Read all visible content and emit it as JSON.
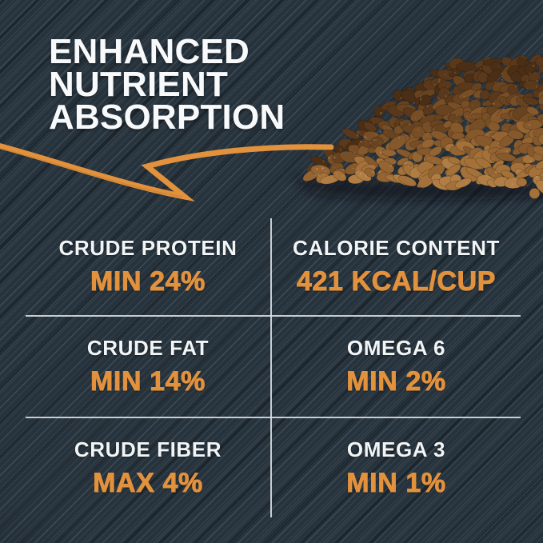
{
  "page": {
    "type": "product-nutrition-infographic"
  },
  "colors": {
    "background": "#26323c",
    "headline_text": "#f7f9fa",
    "label_text": "#f2f5f6",
    "accent_orange": "#e2913c",
    "divider": "#dde3e7"
  },
  "headline": {
    "lines": [
      "ENHANCED",
      "NUTRIENT",
      "ABSORPTION"
    ]
  },
  "stats": {
    "cells": [
      {
        "label": "CRUDE PROTEIN",
        "value": "MIN 24%"
      },
      {
        "label": "CALORIE CONTENT",
        "value": "421 KCAL/CUP"
      },
      {
        "label": "CRUDE FAT",
        "value": "MIN 14%"
      },
      {
        "label": "OMEGA 6",
        "value": "MIN 2%"
      },
      {
        "label": "CRUDE FIBER",
        "value": "MAX 4%"
      },
      {
        "label": "OMEGA 3",
        "value": "MIN 1%"
      }
    ]
  },
  "graphics": {
    "arrow_icon": "hand-drawn-swoosh-arrow",
    "photo": "dog-kibble-pile"
  }
}
